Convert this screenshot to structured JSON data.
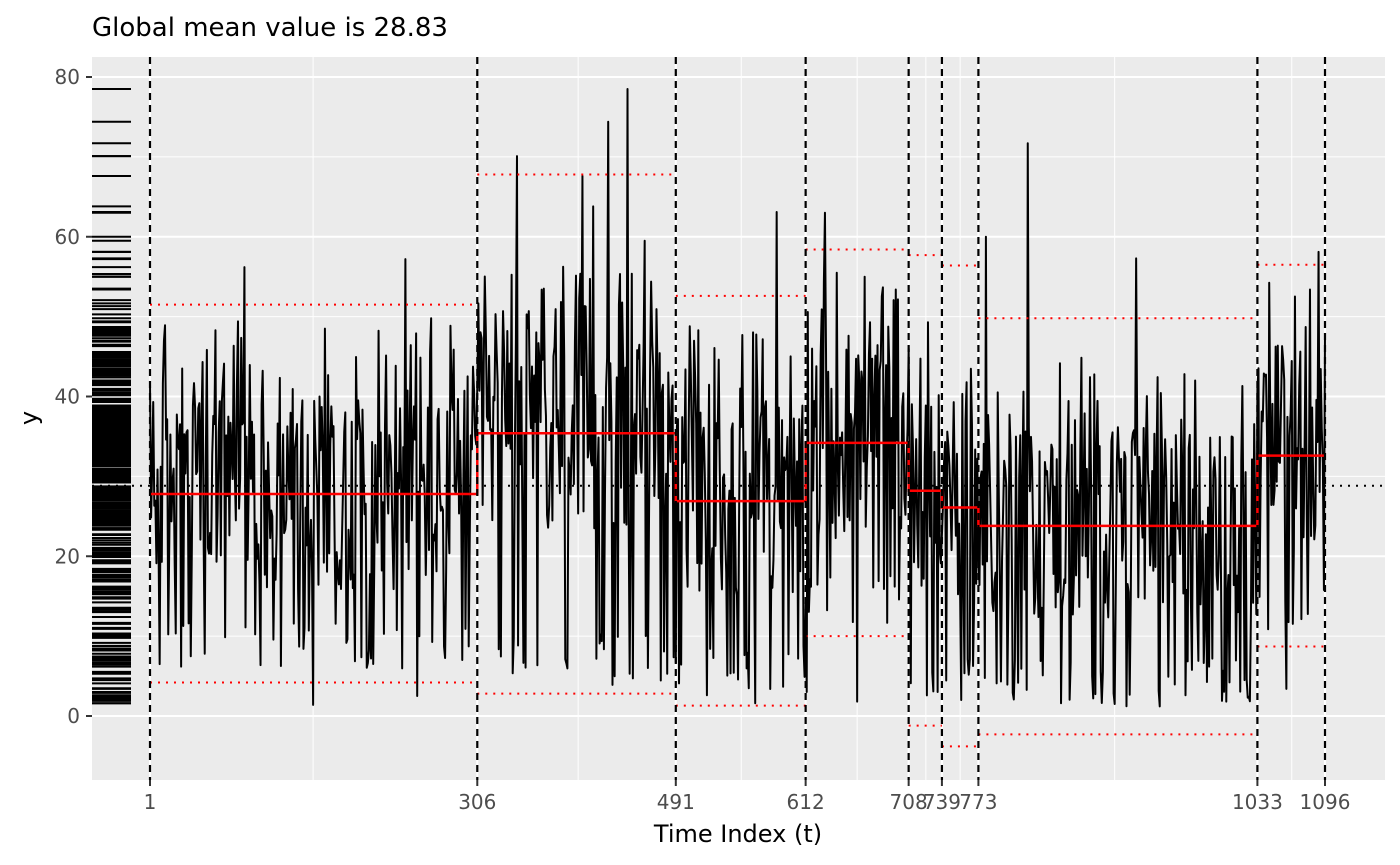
{
  "chart_data": {
    "type": "line",
    "title": "Global mean value is 28.83",
    "xlabel": "Time Index (t)",
    "ylabel": "y",
    "xlim": [
      -25,
      1120
    ],
    "ylim": [
      -8,
      82
    ],
    "yticks": [
      0,
      20,
      40,
      60,
      80
    ],
    "xticks": [
      1,
      306,
      491,
      612,
      708,
      739,
      773,
      1033,
      1096
    ],
    "xtick_labels": [
      "1",
      "306",
      "491",
      "612",
      "708",
      "739",
      "773",
      "1033",
      "1096"
    ],
    "x_minor_gridlines": [
      153,
      400,
      552,
      660,
      724,
      756,
      900,
      1065
    ],
    "grid": true,
    "global_mean": 28.83,
    "changepoints": [
      1,
      306,
      491,
      612,
      708,
      739,
      773,
      1033,
      1096
    ],
    "segments": [
      {
        "start": 1,
        "end": 306,
        "mean": 27.8,
        "upper": 51.5,
        "lower": 4.2
      },
      {
        "start": 306,
        "end": 491,
        "mean": 35.4,
        "upper": 67.8,
        "lower": 2.8
      },
      {
        "start": 491,
        "end": 612,
        "mean": 26.9,
        "upper": 52.6,
        "lower": 1.3
      },
      {
        "start": 612,
        "end": 708,
        "mean": 34.2,
        "upper": 58.4,
        "lower": 10.0
      },
      {
        "start": 708,
        "end": 739,
        "mean": 28.2,
        "upper": 57.7,
        "lower": -1.2
      },
      {
        "start": 739,
        "end": 773,
        "mean": 26.1,
        "upper": 56.4,
        "lower": -3.8
      },
      {
        "start": 773,
        "end": 1033,
        "mean": 23.8,
        "upper": 49.8,
        "lower": -2.3
      },
      {
        "start": 1033,
        "end": 1096,
        "mean": 32.6,
        "upper": 56.5,
        "lower": 8.7
      }
    ],
    "series_peaks": [
      {
        "x": 31,
        "y": 43.5
      },
      {
        "x": 62,
        "y": 48.3
      },
      {
        "x": 83,
        "y": 49.4
      },
      {
        "x": 89,
        "y": 56.2
      },
      {
        "x": 164,
        "y": 48.5
      },
      {
        "x": 239,
        "y": 57.2
      },
      {
        "x": 263,
        "y": 49.8
      },
      {
        "x": 314,
        "y": 48.0
      },
      {
        "x": 334,
        "y": 48.2
      },
      {
        "x": 343,
        "y": 70.1
      },
      {
        "x": 368,
        "y": 53.5
      },
      {
        "x": 404,
        "y": 67.6
      },
      {
        "x": 414,
        "y": 63.8
      },
      {
        "x": 428,
        "y": 74.4
      },
      {
        "x": 446,
        "y": 78.5
      },
      {
        "x": 462,
        "y": 59.5
      },
      {
        "x": 500,
        "y": 43.4
      },
      {
        "x": 565,
        "y": 43.5
      },
      {
        "x": 585,
        "y": 63.1
      },
      {
        "x": 630,
        "y": 63.0
      },
      {
        "x": 667,
        "y": 55.0
      },
      {
        "x": 726,
        "y": 49.3
      },
      {
        "x": 780,
        "y": 60.0
      },
      {
        "x": 819,
        "y": 71.7
      },
      {
        "x": 920,
        "y": 57.3
      },
      {
        "x": 975,
        "y": 42.0
      },
      {
        "x": 1056,
        "y": 46.3
      },
      {
        "x": 1082,
        "y": 53.4
      },
      {
        "x": 1090,
        "y": 58.1
      }
    ],
    "series_troughs": [
      {
        "x": 153,
        "y": 1.4
      },
      {
        "x": 250,
        "y": 2.5
      },
      {
        "x": 432,
        "y": 3.9
      },
      {
        "x": 520,
        "y": 2.6
      },
      {
        "x": 565,
        "y": 1.6
      },
      {
        "x": 613,
        "y": 3.0
      },
      {
        "x": 660,
        "y": 1.8
      },
      {
        "x": 710,
        "y": 4.1
      },
      {
        "x": 735,
        "y": 3.0
      },
      {
        "x": 757,
        "y": 2.0
      },
      {
        "x": 850,
        "y": 1.6
      },
      {
        "x": 880,
        "y": 2.2
      },
      {
        "x": 900,
        "y": 1.5
      },
      {
        "x": 1000,
        "y": 1.9
      },
      {
        "x": 1025,
        "y": 2.4
      },
      {
        "x": 1060,
        "y": 3.4
      }
    ]
  }
}
